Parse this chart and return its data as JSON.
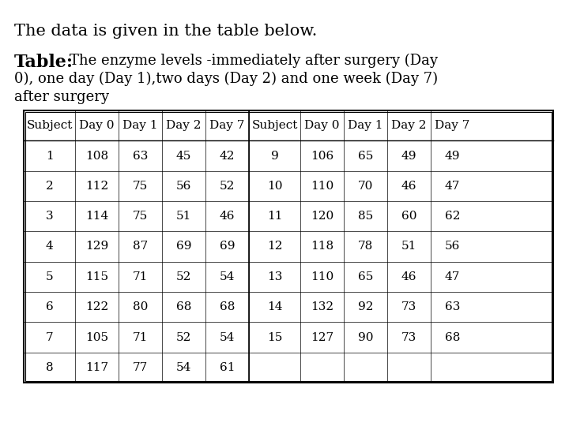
{
  "title": "The data is given in the table below.",
  "col_headers": [
    "Subject",
    "Day 0",
    "Day 1",
    "Day 2",
    "Day 7"
  ],
  "left_data": [
    [
      "1",
      "108",
      "63",
      "45",
      "42"
    ],
    [
      "2",
      "112",
      "75",
      "56",
      "52"
    ],
    [
      "3",
      "114",
      "75",
      "51",
      "46"
    ],
    [
      "4",
      "129",
      "87",
      "69",
      "69"
    ],
    [
      "5",
      "115",
      "71",
      "52",
      "54"
    ],
    [
      "6",
      "122",
      "80",
      "68",
      "68"
    ],
    [
      "7",
      "105",
      "71",
      "52",
      "54"
    ],
    [
      "8",
      "117",
      "77",
      "54",
      "61"
    ]
  ],
  "right_data": [
    [
      "9",
      "106",
      "65",
      "49",
      "49"
    ],
    [
      "10",
      "110",
      "70",
      "46",
      "47"
    ],
    [
      "11",
      "120",
      "85",
      "60",
      "62"
    ],
    [
      "12",
      "118",
      "78",
      "51",
      "56"
    ],
    [
      "13",
      "110",
      "65",
      "46",
      "47"
    ],
    [
      "14",
      "132",
      "92",
      "73",
      "63"
    ],
    [
      "15",
      "127",
      "90",
      "73",
      "68"
    ],
    [
      "",
      "",
      "",
      "",
      ""
    ]
  ],
  "bg_color": "#ffffff",
  "text_color": "#000000",
  "font_family": "DejaVu Serif",
  "title_fontsize": 15,
  "table_label_bold_fontsize": 16,
  "table_text_fontsize": 13,
  "table_cell_fontsize": 11
}
